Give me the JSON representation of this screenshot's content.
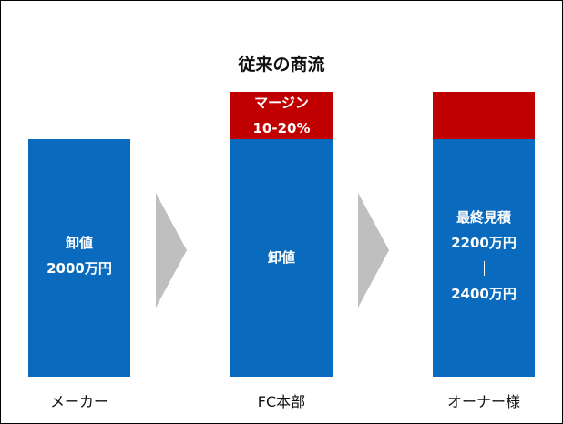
{
  "title": "従来の商流",
  "colors": {
    "blue": "#0A6BBE",
    "red": "#C00000",
    "arrow": "#BFBFBF"
  },
  "columns": [
    {
      "label": "メーカー",
      "text": [
        "卸値",
        "2000万円"
      ]
    },
    {
      "label": "FC本部",
      "margin_lines": [
        "マージン",
        "10-20%"
      ],
      "text": [
        "卸値"
      ]
    },
    {
      "label": "オーナー様",
      "text_top": [
        "最終見積",
        "2200万円"
      ],
      "text_bottom": [
        "2400万円"
      ]
    }
  ]
}
